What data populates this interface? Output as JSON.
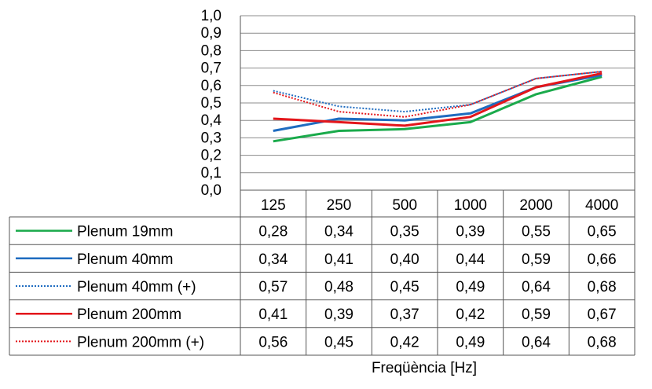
{
  "chart_data": {
    "type": "line",
    "title": "",
    "xlabel": "Freqüència [Hz]",
    "ylabel": "",
    "ylim": [
      0,
      1.0
    ],
    "yticks": [
      "0,0",
      "0,1",
      "0,2",
      "0,3",
      "0,4",
      "0,5",
      "0,6",
      "0,7",
      "0,8",
      "0,9",
      "1,0"
    ],
    "grid": true,
    "legend": "data-table",
    "categories": [
      "125",
      "250",
      "500",
      "1000",
      "2000",
      "4000"
    ],
    "series": [
      {
        "name": "Plenum 19mm",
        "color": "#1aaa4b",
        "dashed": false,
        "values": [
          0.28,
          0.34,
          0.35,
          0.39,
          0.55,
          0.65
        ],
        "labels": [
          "0,28",
          "0,34",
          "0,35",
          "0,39",
          "0,55",
          "0,65"
        ]
      },
      {
        "name": "Plenum 40mm",
        "color": "#1f6cc0",
        "dashed": false,
        "values": [
          0.34,
          0.41,
          0.4,
          0.44,
          0.59,
          0.66
        ],
        "labels": [
          "0,34",
          "0,41",
          "0,40",
          "0,44",
          "0,59",
          "0,66"
        ]
      },
      {
        "name": "Plenum 40mm (+)",
        "color": "#1f6cc0",
        "dashed": true,
        "values": [
          0.57,
          0.48,
          0.45,
          0.49,
          0.64,
          0.68
        ],
        "labels": [
          "0,57",
          "0,48",
          "0,45",
          "0,49",
          "0,64",
          "0,68"
        ]
      },
      {
        "name": "Plenum 200mm",
        "color": "#e3161b",
        "dashed": false,
        "values": [
          0.41,
          0.39,
          0.37,
          0.42,
          0.59,
          0.67
        ],
        "labels": [
          "0,41",
          "0,39",
          "0,37",
          "0,42",
          "0,59",
          "0,67"
        ]
      },
      {
        "name": "Plenum 200mm (+)",
        "color": "#e3161b",
        "dashed": true,
        "values": [
          0.56,
          0.45,
          0.42,
          0.49,
          0.64,
          0.68
        ],
        "labels": [
          "0,56",
          "0,45",
          "0,42",
          "0,49",
          "0,64",
          "0,68"
        ]
      }
    ]
  }
}
